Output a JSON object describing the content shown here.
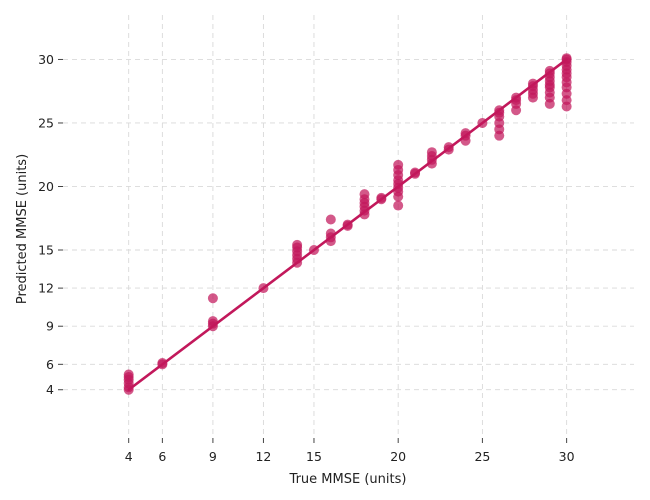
{
  "chart_data": {
    "type": "scatter",
    "title": "",
    "xlabel": "True MMSE (units)",
    "ylabel": "Predicted MMSE (units)",
    "xlim": [
      0.1,
      34
    ],
    "ylim": [
      0.2,
      33.5
    ],
    "xticks": [
      4,
      6,
      9,
      12,
      15,
      20,
      25,
      30
    ],
    "yticks": [
      4,
      6,
      9,
      12,
      15,
      20,
      25,
      30
    ],
    "grid": true,
    "colors": {
      "marker": "#c2185b",
      "line": "#c2185b"
    },
    "fit_line": {
      "x": [
        4,
        30
      ],
      "y": [
        4,
        30
      ]
    },
    "points": [
      [
        4,
        4.0
      ],
      [
        4,
        4.2
      ],
      [
        4,
        4.5
      ],
      [
        4,
        4.8
      ],
      [
        4,
        5.0
      ],
      [
        4,
        5.2
      ],
      [
        6,
        6.0
      ],
      [
        6,
        6.1
      ],
      [
        9,
        9.0
      ],
      [
        9,
        9.2
      ],
      [
        9,
        9.4
      ],
      [
        9,
        11.2
      ],
      [
        12,
        12.0
      ],
      [
        14,
        14.0
      ],
      [
        14,
        14.3
      ],
      [
        14,
        14.6
      ],
      [
        14,
        14.9
      ],
      [
        14,
        15.2
      ],
      [
        14,
        15.4
      ],
      [
        15,
        15.0
      ],
      [
        16,
        15.7
      ],
      [
        16,
        16.0
      ],
      [
        16,
        16.3
      ],
      [
        16,
        17.4
      ],
      [
        17,
        16.9
      ],
      [
        17,
        17.0
      ],
      [
        18,
        17.8
      ],
      [
        18,
        18.1
      ],
      [
        18,
        18.4
      ],
      [
        18,
        18.7
      ],
      [
        18,
        19.0
      ],
      [
        18,
        19.4
      ],
      [
        19,
        19.0
      ],
      [
        19,
        19.1
      ],
      [
        20,
        18.5
      ],
      [
        20,
        19.2
      ],
      [
        20,
        19.6
      ],
      [
        20,
        19.9
      ],
      [
        20,
        20.2
      ],
      [
        20,
        20.5
      ],
      [
        20,
        20.9
      ],
      [
        20,
        21.3
      ],
      [
        20,
        21.7
      ],
      [
        21,
        21.0
      ],
      [
        21,
        21.1
      ],
      [
        22,
        21.8
      ],
      [
        22,
        22.1
      ],
      [
        22,
        22.4
      ],
      [
        22,
        22.7
      ],
      [
        23,
        22.9
      ],
      [
        23,
        23.1
      ],
      [
        24,
        23.6
      ],
      [
        24,
        24.0
      ],
      [
        24,
        24.2
      ],
      [
        25,
        25.0
      ],
      [
        26,
        24.0
      ],
      [
        26,
        24.5
      ],
      [
        26,
        25.0
      ],
      [
        26,
        25.5
      ],
      [
        26,
        25.8
      ],
      [
        26,
        26.0
      ],
      [
        27,
        26.0
      ],
      [
        27,
        26.5
      ],
      [
        27,
        26.8
      ],
      [
        27,
        27.0
      ],
      [
        28,
        27.0
      ],
      [
        28,
        27.3
      ],
      [
        28,
        27.6
      ],
      [
        28,
        27.9
      ],
      [
        28,
        28.1
      ],
      [
        29,
        26.5
      ],
      [
        29,
        27.0
      ],
      [
        29,
        27.4
      ],
      [
        29,
        27.8
      ],
      [
        29,
        28.0
      ],
      [
        29,
        28.3
      ],
      [
        29,
        28.6
      ],
      [
        29,
        28.9
      ],
      [
        29,
        29.1
      ],
      [
        30,
        26.3
      ],
      [
        30,
        26.8
      ],
      [
        30,
        27.3
      ],
      [
        30,
        27.8
      ],
      [
        30,
        28.2
      ],
      [
        30,
        28.6
      ],
      [
        30,
        28.9
      ],
      [
        30,
        29.2
      ],
      [
        30,
        29.5
      ],
      [
        30,
        29.8
      ],
      [
        30,
        30.0
      ],
      [
        30,
        30.1
      ]
    ]
  }
}
